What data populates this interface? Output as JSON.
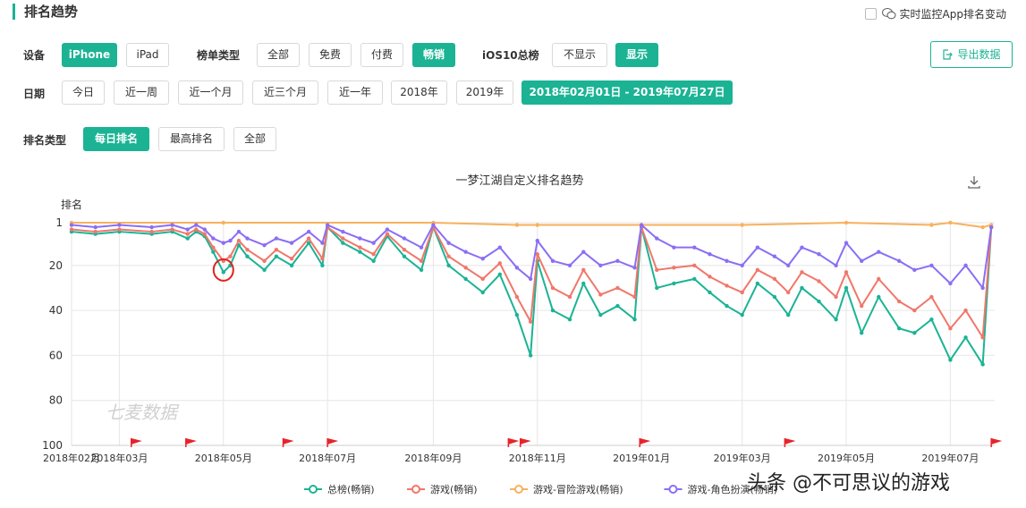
{
  "header": {
    "title": "排名趋势",
    "realtime_label": "实时监控App排名变动"
  },
  "filters": {
    "device_label": "设备",
    "device_options": [
      "iPhone",
      "iPad"
    ],
    "list_type_label": "榜单类型",
    "list_type_options": [
      "全部",
      "免费",
      "付费",
      "畅销"
    ],
    "ios10_label": "iOS10总榜",
    "ios10_options": [
      "不显示",
      "显示"
    ],
    "export_label": "导出数据",
    "date_label": "日期",
    "date_options": [
      "今日",
      "近一周",
      "近一个月",
      "近三个月",
      "近一年",
      "2018年",
      "2019年"
    ],
    "date_range": "2018年02月01日 - 2019年07月27日",
    "rank_type_label": "排名类型",
    "rank_type_options": [
      "每日排名",
      "最高排名",
      "全部"
    ]
  },
  "footer_watermark": "头条 @不可思议的游戏",
  "chart_watermark": "七麦数据",
  "colors": {
    "accent": "#1bb394",
    "series_total": "#1bb394",
    "series_games": "#f0776a",
    "series_adventure": "#f7b15d",
    "series_rpg": "#8a6ef5",
    "flag": "#e8232a"
  },
  "chart_data": {
    "type": "line",
    "title": "一梦江湖自定义排名趋势",
    "ylabel": "排名",
    "y_inverted": true,
    "ylim": [
      1,
      100
    ],
    "y_ticks": [
      1,
      20,
      40,
      60,
      80,
      100
    ],
    "x_ticks": [
      "2018年02月",
      "2018年03月",
      "2018年05月",
      "2018年07月",
      "2018年09月",
      "2018年11月",
      "2019年01月",
      "2019年03月",
      "2019年05月",
      "2019年07月"
    ],
    "x_tick_dates": [
      "2018-02-01",
      "2018-03-01",
      "2018-05-01",
      "2018-07-01",
      "2018-09-01",
      "2018-11-01",
      "2019-01-01",
      "2019-03-01",
      "2019-05-01",
      "2019-07-01"
    ],
    "x_range": [
      "2018-02-01",
      "2019-07-27"
    ],
    "grid": true,
    "legend_position": "bottom",
    "event_flags": [
      "2018-03-08",
      "2018-04-09",
      "2018-06-05",
      "2018-07-01",
      "2018-10-15",
      "2018-10-22",
      "2018-12-31",
      "2019-03-26",
      "2019-07-25"
    ],
    "annotation": {
      "type": "circle",
      "date": "2018-05-01",
      "rank": 22
    },
    "series": [
      {
        "name": "总榜(畅销)",
        "color": "#1bb394",
        "points": [
          [
            "2018-02-01",
            5
          ],
          [
            "2018-02-15",
            6
          ],
          [
            "2018-03-01",
            5
          ],
          [
            "2018-03-20",
            6
          ],
          [
            "2018-04-01",
            5
          ],
          [
            "2018-04-10",
            8
          ],
          [
            "2018-04-15",
            5
          ],
          [
            "2018-04-20",
            7
          ],
          [
            "2018-04-25",
            14
          ],
          [
            "2018-05-01",
            23
          ],
          [
            "2018-05-05",
            20
          ],
          [
            "2018-05-10",
            11
          ],
          [
            "2018-05-15",
            16
          ],
          [
            "2018-05-25",
            22
          ],
          [
            "2018-06-01",
            16
          ],
          [
            "2018-06-10",
            20
          ],
          [
            "2018-06-20",
            10
          ],
          [
            "2018-06-28",
            20
          ],
          [
            "2018-07-01",
            3
          ],
          [
            "2018-07-10",
            10
          ],
          [
            "2018-07-20",
            14
          ],
          [
            "2018-07-28",
            18
          ],
          [
            "2018-08-05",
            7
          ],
          [
            "2018-08-15",
            16
          ],
          [
            "2018-08-25",
            22
          ],
          [
            "2018-09-01",
            3
          ],
          [
            "2018-09-10",
            20
          ],
          [
            "2018-09-20",
            26
          ],
          [
            "2018-09-30",
            32
          ],
          [
            "2018-10-10",
            24
          ],
          [
            "2018-10-20",
            42
          ],
          [
            "2018-10-28",
            60
          ],
          [
            "2018-11-01",
            18
          ],
          [
            "2018-11-10",
            40
          ],
          [
            "2018-11-20",
            44
          ],
          [
            "2018-11-28",
            28
          ],
          [
            "2018-12-08",
            42
          ],
          [
            "2018-12-18",
            38
          ],
          [
            "2018-12-28",
            44
          ],
          [
            "2019-01-01",
            3
          ],
          [
            "2019-01-10",
            30
          ],
          [
            "2019-01-20",
            28
          ],
          [
            "2019-02-01",
            26
          ],
          [
            "2019-02-10",
            32
          ],
          [
            "2019-02-20",
            38
          ],
          [
            "2019-03-01",
            42
          ],
          [
            "2019-03-10",
            28
          ],
          [
            "2019-03-20",
            34
          ],
          [
            "2019-03-28",
            42
          ],
          [
            "2019-04-05",
            30
          ],
          [
            "2019-04-15",
            36
          ],
          [
            "2019-04-25",
            44
          ],
          [
            "2019-05-01",
            30
          ],
          [
            "2019-05-10",
            50
          ],
          [
            "2019-05-20",
            34
          ],
          [
            "2019-06-01",
            48
          ],
          [
            "2019-06-10",
            50
          ],
          [
            "2019-06-20",
            44
          ],
          [
            "2019-07-01",
            62
          ],
          [
            "2019-07-10",
            52
          ],
          [
            "2019-07-20",
            64
          ],
          [
            "2019-07-25",
            3
          ]
        ]
      },
      {
        "name": "游戏(畅销)",
        "color": "#f0776a",
        "points": [
          [
            "2018-02-01",
            4
          ],
          [
            "2018-02-15",
            5
          ],
          [
            "2018-03-01",
            4
          ],
          [
            "2018-03-20",
            5
          ],
          [
            "2018-04-01",
            4
          ],
          [
            "2018-04-10",
            6
          ],
          [
            "2018-04-15",
            4
          ],
          [
            "2018-04-20",
            6
          ],
          [
            "2018-04-25",
            12
          ],
          [
            "2018-05-01",
            18
          ],
          [
            "2018-05-05",
            16
          ],
          [
            "2018-05-10",
            9
          ],
          [
            "2018-05-15",
            13
          ],
          [
            "2018-05-25",
            18
          ],
          [
            "2018-06-01",
            13
          ],
          [
            "2018-06-10",
            17
          ],
          [
            "2018-06-20",
            8
          ],
          [
            "2018-06-28",
            17
          ],
          [
            "2018-07-01",
            3
          ],
          [
            "2018-07-10",
            8
          ],
          [
            "2018-07-20",
            12
          ],
          [
            "2018-07-28",
            15
          ],
          [
            "2018-08-05",
            6
          ],
          [
            "2018-08-15",
            13
          ],
          [
            "2018-08-25",
            18
          ],
          [
            "2018-09-01",
            3
          ],
          [
            "2018-09-10",
            16
          ],
          [
            "2018-09-20",
            21
          ],
          [
            "2018-09-30",
            26
          ],
          [
            "2018-10-10",
            19
          ],
          [
            "2018-10-20",
            34
          ],
          [
            "2018-10-28",
            45
          ],
          [
            "2018-11-01",
            15
          ],
          [
            "2018-11-10",
            30
          ],
          [
            "2018-11-20",
            34
          ],
          [
            "2018-11-28",
            22
          ],
          [
            "2018-12-08",
            33
          ],
          [
            "2018-12-18",
            30
          ],
          [
            "2018-12-28",
            34
          ],
          [
            "2019-01-01",
            3
          ],
          [
            "2019-01-10",
            22
          ],
          [
            "2019-01-20",
            21
          ],
          [
            "2019-02-01",
            20
          ],
          [
            "2019-02-10",
            25
          ],
          [
            "2019-02-20",
            29
          ],
          [
            "2019-03-01",
            32
          ],
          [
            "2019-03-10",
            22
          ],
          [
            "2019-03-20",
            26
          ],
          [
            "2019-03-28",
            32
          ],
          [
            "2019-04-05",
            23
          ],
          [
            "2019-04-15",
            27
          ],
          [
            "2019-04-25",
            34
          ],
          [
            "2019-05-01",
            23
          ],
          [
            "2019-05-10",
            38
          ],
          [
            "2019-05-20",
            26
          ],
          [
            "2019-06-01",
            36
          ],
          [
            "2019-06-10",
            40
          ],
          [
            "2019-06-20",
            34
          ],
          [
            "2019-07-01",
            48
          ],
          [
            "2019-07-10",
            40
          ],
          [
            "2019-07-20",
            52
          ],
          [
            "2019-07-25",
            3
          ]
        ]
      },
      {
        "name": "游戏-冒险游戏(畅销)",
        "color": "#f7b15d",
        "points": [
          [
            "2018-02-01",
            1
          ],
          [
            "2018-05-01",
            1
          ],
          [
            "2018-09-01",
            1
          ],
          [
            "2018-10-20",
            2
          ],
          [
            "2018-11-01",
            2
          ],
          [
            "2019-01-01",
            2
          ],
          [
            "2019-03-01",
            2
          ],
          [
            "2019-05-01",
            1
          ],
          [
            "2019-06-20",
            2
          ],
          [
            "2019-07-01",
            1
          ],
          [
            "2019-07-20",
            3
          ],
          [
            "2019-07-25",
            2
          ]
        ]
      },
      {
        "name": "游戏-角色扮演(畅销)",
        "color": "#8a6ef5",
        "points": [
          [
            "2018-02-01",
            2
          ],
          [
            "2018-02-15",
            3
          ],
          [
            "2018-03-01",
            2
          ],
          [
            "2018-03-20",
            3
          ],
          [
            "2018-04-01",
            2
          ],
          [
            "2018-04-10",
            4
          ],
          [
            "2018-04-15",
            2
          ],
          [
            "2018-04-20",
            4
          ],
          [
            "2018-04-25",
            8
          ],
          [
            "2018-05-01",
            10
          ],
          [
            "2018-05-05",
            9
          ],
          [
            "2018-05-10",
            5
          ],
          [
            "2018-05-15",
            8
          ],
          [
            "2018-05-25",
            11
          ],
          [
            "2018-06-01",
            8
          ],
          [
            "2018-06-10",
            10
          ],
          [
            "2018-06-20",
            5
          ],
          [
            "2018-06-28",
            10
          ],
          [
            "2018-07-01",
            2
          ],
          [
            "2018-07-10",
            5
          ],
          [
            "2018-07-20",
            8
          ],
          [
            "2018-07-28",
            10
          ],
          [
            "2018-08-05",
            4
          ],
          [
            "2018-08-15",
            8
          ],
          [
            "2018-08-25",
            12
          ],
          [
            "2018-09-01",
            2
          ],
          [
            "2018-09-10",
            10
          ],
          [
            "2018-09-20",
            14
          ],
          [
            "2018-09-30",
            17
          ],
          [
            "2018-10-10",
            12
          ],
          [
            "2018-10-20",
            21
          ],
          [
            "2018-10-28",
            26
          ],
          [
            "2018-11-01",
            9
          ],
          [
            "2018-11-10",
            18
          ],
          [
            "2018-11-20",
            20
          ],
          [
            "2018-11-28",
            14
          ],
          [
            "2018-12-08",
            20
          ],
          [
            "2018-12-18",
            18
          ],
          [
            "2018-12-28",
            21
          ],
          [
            "2019-01-01",
            2
          ],
          [
            "2019-01-10",
            8
          ],
          [
            "2019-01-20",
            12
          ],
          [
            "2019-02-01",
            12
          ],
          [
            "2019-02-10",
            15
          ],
          [
            "2019-02-20",
            18
          ],
          [
            "2019-03-01",
            20
          ],
          [
            "2019-03-10",
            12
          ],
          [
            "2019-03-20",
            16
          ],
          [
            "2019-03-28",
            20
          ],
          [
            "2019-04-05",
            12
          ],
          [
            "2019-04-15",
            15
          ],
          [
            "2019-04-25",
            20
          ],
          [
            "2019-05-01",
            10
          ],
          [
            "2019-05-10",
            18
          ],
          [
            "2019-05-20",
            14
          ],
          [
            "2019-06-01",
            18
          ],
          [
            "2019-06-10",
            22
          ],
          [
            "2019-06-20",
            20
          ],
          [
            "2019-07-01",
            28
          ],
          [
            "2019-07-10",
            20
          ],
          [
            "2019-07-20",
            30
          ],
          [
            "2019-07-25",
            3
          ]
        ]
      }
    ]
  }
}
